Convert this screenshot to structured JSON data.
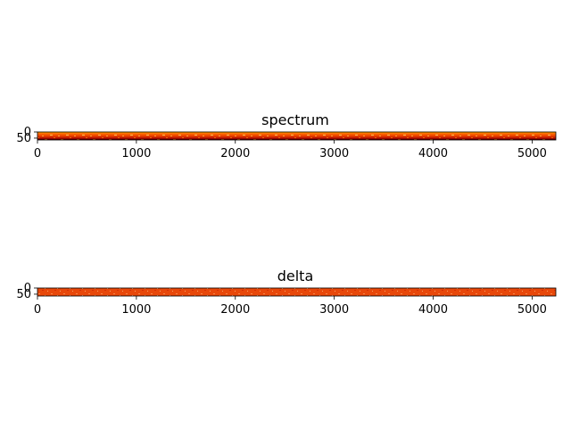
{
  "chart_data": [
    {
      "type": "heatmap",
      "title": "spectrum",
      "xlabel": "",
      "ylabel": "",
      "xlim": [
        0,
        5240
      ],
      "ylim": [
        65,
        0
      ],
      "x_ticks": [
        0,
        1000,
        2000,
        3000,
        4000,
        5000
      ],
      "y_ticks": [
        0,
        50
      ],
      "colormap": "hot",
      "row_band_values": [
        {
          "rows": [
            0,
            8
          ],
          "level": 0.72
        },
        {
          "rows": [
            8,
            20
          ],
          "level": 0.62
        },
        {
          "rows": [
            20,
            32
          ],
          "level": 0.52
        },
        {
          "rows": [
            32,
            44
          ],
          "level": 0.45
        },
        {
          "rows": [
            44,
            54
          ],
          "level": 0.3
        },
        {
          "rows": [
            54,
            65
          ],
          "level": 0.08
        }
      ],
      "colors": {
        "dark": "#5a0000",
        "red": "#c81e00",
        "orange": "#ff6a00",
        "yellow": "#ffd24a"
      }
    },
    {
      "type": "heatmap",
      "title": "delta",
      "xlabel": "",
      "ylabel": "",
      "xlim": [
        0,
        5240
      ],
      "ylim": [
        65,
        0
      ],
      "x_ticks": [
        0,
        1000,
        2000,
        3000,
        4000,
        5000
      ],
      "y_ticks": [
        0,
        50
      ],
      "colormap": "hot",
      "row_band_values": [
        {
          "rows": [
            0,
            65
          ],
          "level": 0.5
        }
      ],
      "colors": {
        "dark": "#a11a00",
        "red": "#e04a00",
        "orange": "#ff6f1a",
        "yellow": "#ffd27a"
      }
    }
  ]
}
